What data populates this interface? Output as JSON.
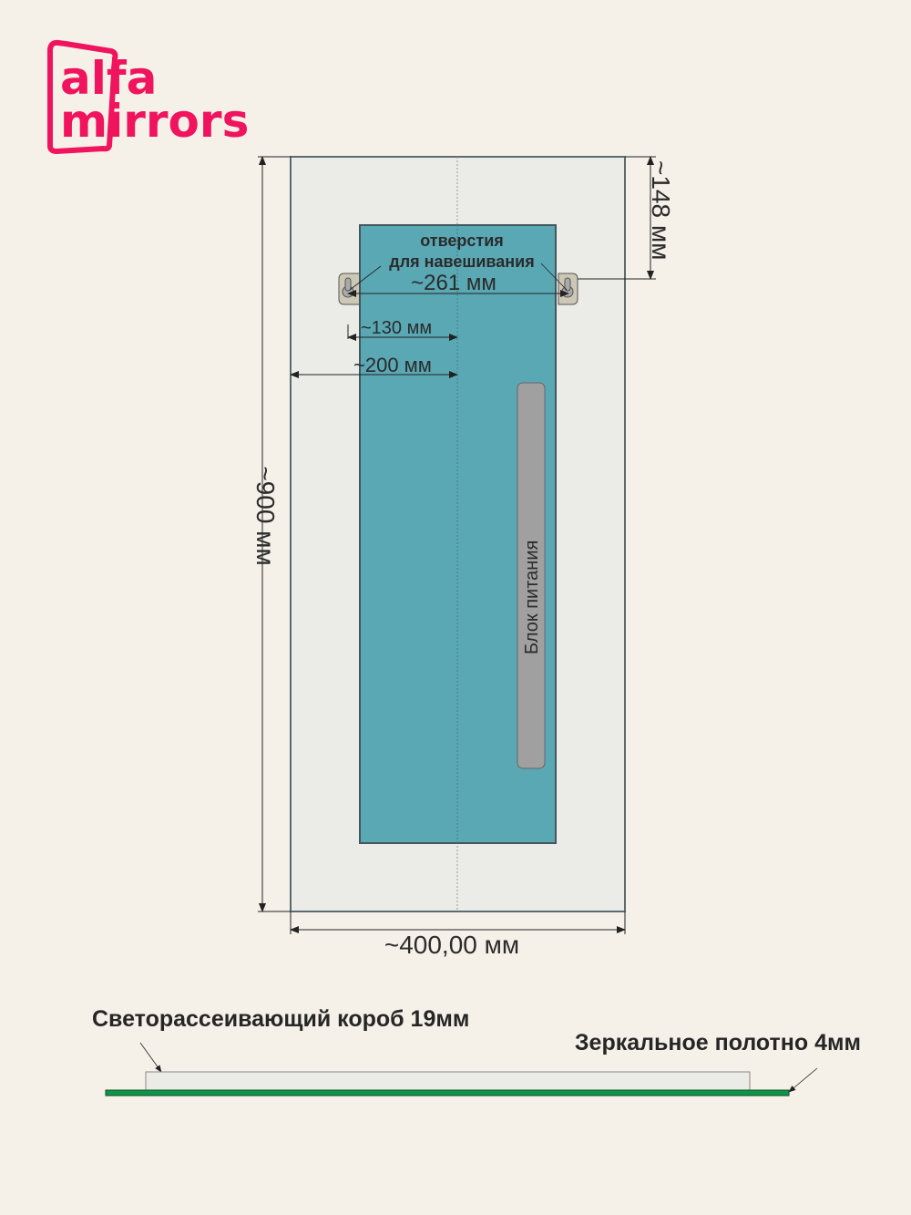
{
  "logo": {
    "line1": "alfa",
    "line2": "mirrors",
    "color": "#f0145f"
  },
  "dimensions": {
    "top_offset": "~148 мм",
    "height": "~900 мм",
    "width": "~400,00 мм",
    "hole_spacing": "~261 мм",
    "hole_from_center": "~130 мм",
    "edge_to_center": "~200 мм"
  },
  "labels": {
    "holes_line1": "отверстия",
    "holes_line2": "для навешивания",
    "power_supply": "Блок питания",
    "diffuser_box": "Светорассеивающий короб 19мм",
    "mirror_sheet": "Зеркальное полотно 4мм"
  },
  "colors": {
    "background": "#f5f1e8",
    "mirror": "#ebebe8",
    "box": "#5aa8b4",
    "power_supply": "#a0a0a0",
    "mirror_edge": "#119447"
  }
}
